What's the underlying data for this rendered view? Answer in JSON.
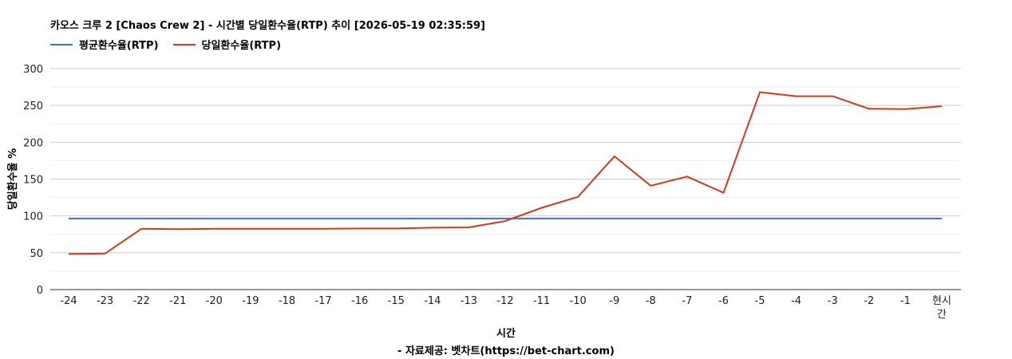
{
  "header": {
    "title": "카오스 크루 2 [Chaos Crew 2] - 시간별 당일환수율(RTP) 추이 [2026-05-19 02:35:59]"
  },
  "footer": {
    "xlabel": "시간",
    "source": "- 자료제공: 벳차트(https://bet-chart.com)"
  },
  "chart_data": {
    "type": "line",
    "title": "카오스 크루 2 [Chaos Crew 2] - 시간별 당일환수율(RTP) 추이 [2026-05-19 02:35:59]",
    "xlabel": "시간",
    "ylabel": "당일환수율 %",
    "ylim": [
      0,
      300
    ],
    "yticks": [
      0,
      50,
      100,
      150,
      200,
      250,
      300
    ],
    "grid": true,
    "legend_position": "top-left",
    "categories": [
      "-24",
      "-23",
      "-22",
      "-21",
      "-20",
      "-19",
      "-18",
      "-17",
      "-16",
      "-15",
      "-14",
      "-13",
      "-12",
      "-11",
      "-10",
      "-9",
      "-8",
      "-7",
      "-6",
      "-5",
      "-4",
      "-3",
      "-2",
      "-1",
      "현시간"
    ],
    "series": [
      {
        "name": "평균환수율(RTP)",
        "color": "#3b6fd1",
        "values": [
          96.5,
          96.5,
          96.5,
          96.5,
          96.5,
          96.5,
          96.5,
          96.5,
          96.5,
          96.5,
          96.5,
          96.5,
          96.5,
          96.5,
          96.5,
          96.5,
          96.5,
          96.5,
          96.5,
          96.5,
          96.5,
          96.5,
          96.5,
          96.5,
          96.5
        ]
      },
      {
        "name": "당일환수율(RTP)",
        "color": "#d23a1a",
        "values": [
          48.5,
          49,
          82.5,
          82,
          82.5,
          82.5,
          82.5,
          82.5,
          83,
          83,
          84,
          84.5,
          93,
          111,
          126,
          181,
          141,
          153.5,
          131.5,
          268,
          262.5,
          262.5,
          245.5,
          245,
          249
        ]
      }
    ]
  }
}
